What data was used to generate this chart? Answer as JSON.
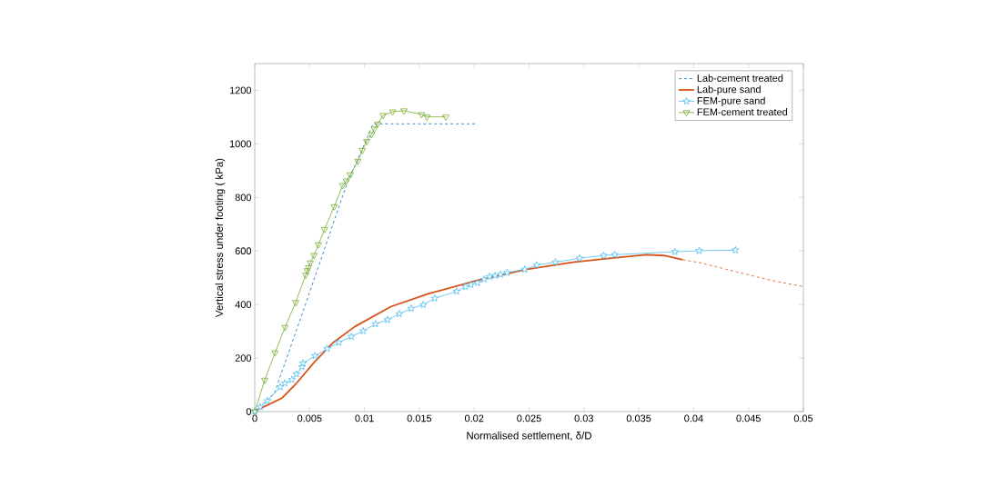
{
  "chart_data": {
    "type": "line",
    "xlabel": "Normalised settlement, δ/D",
    "ylabel": "Vertical stress under footing ( kPa)",
    "xlim": [
      0,
      0.05
    ],
    "ylim": [
      0,
      1300
    ],
    "xticks": [
      0,
      0.005,
      0.01,
      0.015,
      0.02,
      0.025,
      0.03,
      0.035,
      0.04,
      0.045,
      0.05
    ],
    "yticks": [
      0,
      200,
      400,
      600,
      800,
      1000,
      1200
    ],
    "grid": false,
    "legend": "top right",
    "series": [
      {
        "name": "Lab-cement treated",
        "color": "#0072bd",
        "line_style": "dashed",
        "marker": "none",
        "x": [
          0,
          0.0018,
          0.0047,
          0.0083,
          0.0108,
          0.0201
        ],
        "values": [
          0,
          70,
          409,
          840,
          1075,
          1075
        ]
      },
      {
        "name": "Lab-pure sand",
        "color": "#d95319",
        "line_style": "solid",
        "marker": "none",
        "x": [
          0,
          0.00116,
          0.0025,
          0.0038,
          0.0055,
          0.0071,
          0.0091,
          0.0124,
          0.0158,
          0.0201,
          0.0247,
          0.029,
          0.0323,
          0.0357,
          0.0373,
          0.039
        ],
        "values": [
          3,
          24,
          51,
          106,
          188,
          256,
          317,
          392,
          440,
          488,
          531,
          558,
          572,
          586,
          583,
          567
        ]
      },
      {
        "color": "#d95319",
        "line_style": "dashed",
        "marker": "none",
        "x": [
          0.039,
          0.0406,
          0.0439,
          0.0473,
          0.05
        ],
        "values": [
          567,
          556,
          522,
          488,
          467
        ]
      },
      {
        "name": "FEM-pure sand",
        "color": "#4dbeee",
        "line_style": "solid",
        "marker": "star",
        "x": [
          0,
          0.0005,
          0.00116,
          0.00232,
          0.00275,
          0.00338,
          0.0038,
          0.0043,
          0.0044,
          0.0055,
          0.0066,
          0.00766,
          0.0088,
          0.00988,
          0.011,
          0.0121,
          0.01317,
          0.01426,
          0.01536,
          0.0164,
          0.0184,
          0.0192,
          0.0197,
          0.0203,
          0.0209,
          0.0214,
          0.0219,
          0.0224,
          0.023,
          0.0246,
          0.0257,
          0.0274,
          0.0296,
          0.0318,
          0.0328,
          0.0383,
          0.0405,
          0.0438
        ],
        "values": [
          0,
          17,
          40,
          92,
          106,
          119,
          140,
          167,
          181,
          208,
          235,
          258,
          280,
          301,
          327,
          343,
          365,
          385,
          399,
          423,
          449,
          466,
          474,
          481,
          494,
          504,
          508,
          512,
          519,
          531,
          547,
          558,
          573,
          583,
          586,
          597,
          601,
          603
        ]
      },
      {
        "name": "FEM-cement treated",
        "color": "#77ac30",
        "line_style": "solid",
        "marker": "triangle",
        "x": [
          0,
          0.00091,
          0.00185,
          0.00276,
          0.00373,
          0.00464,
          0.00478,
          0.0049,
          0.00506,
          0.0054,
          0.0058,
          0.00636,
          0.00724,
          0.00801,
          0.00834,
          0.0087,
          0.0094,
          0.0098,
          0.0102,
          0.01064,
          0.0109,
          0.0112,
          0.0117,
          0.01256,
          0.0136,
          0.0152,
          0.0157,
          0.0174
        ],
        "values": [
          0,
          118,
          220,
          315,
          408,
          510,
          527,
          538,
          556,
          584,
          624,
          681,
          766,
          845,
          862,
          885,
          936,
          976,
          1010,
          1035,
          1056,
          1075,
          1107,
          1120,
          1124,
          1110,
          1101,
          1101
        ]
      }
    ]
  }
}
